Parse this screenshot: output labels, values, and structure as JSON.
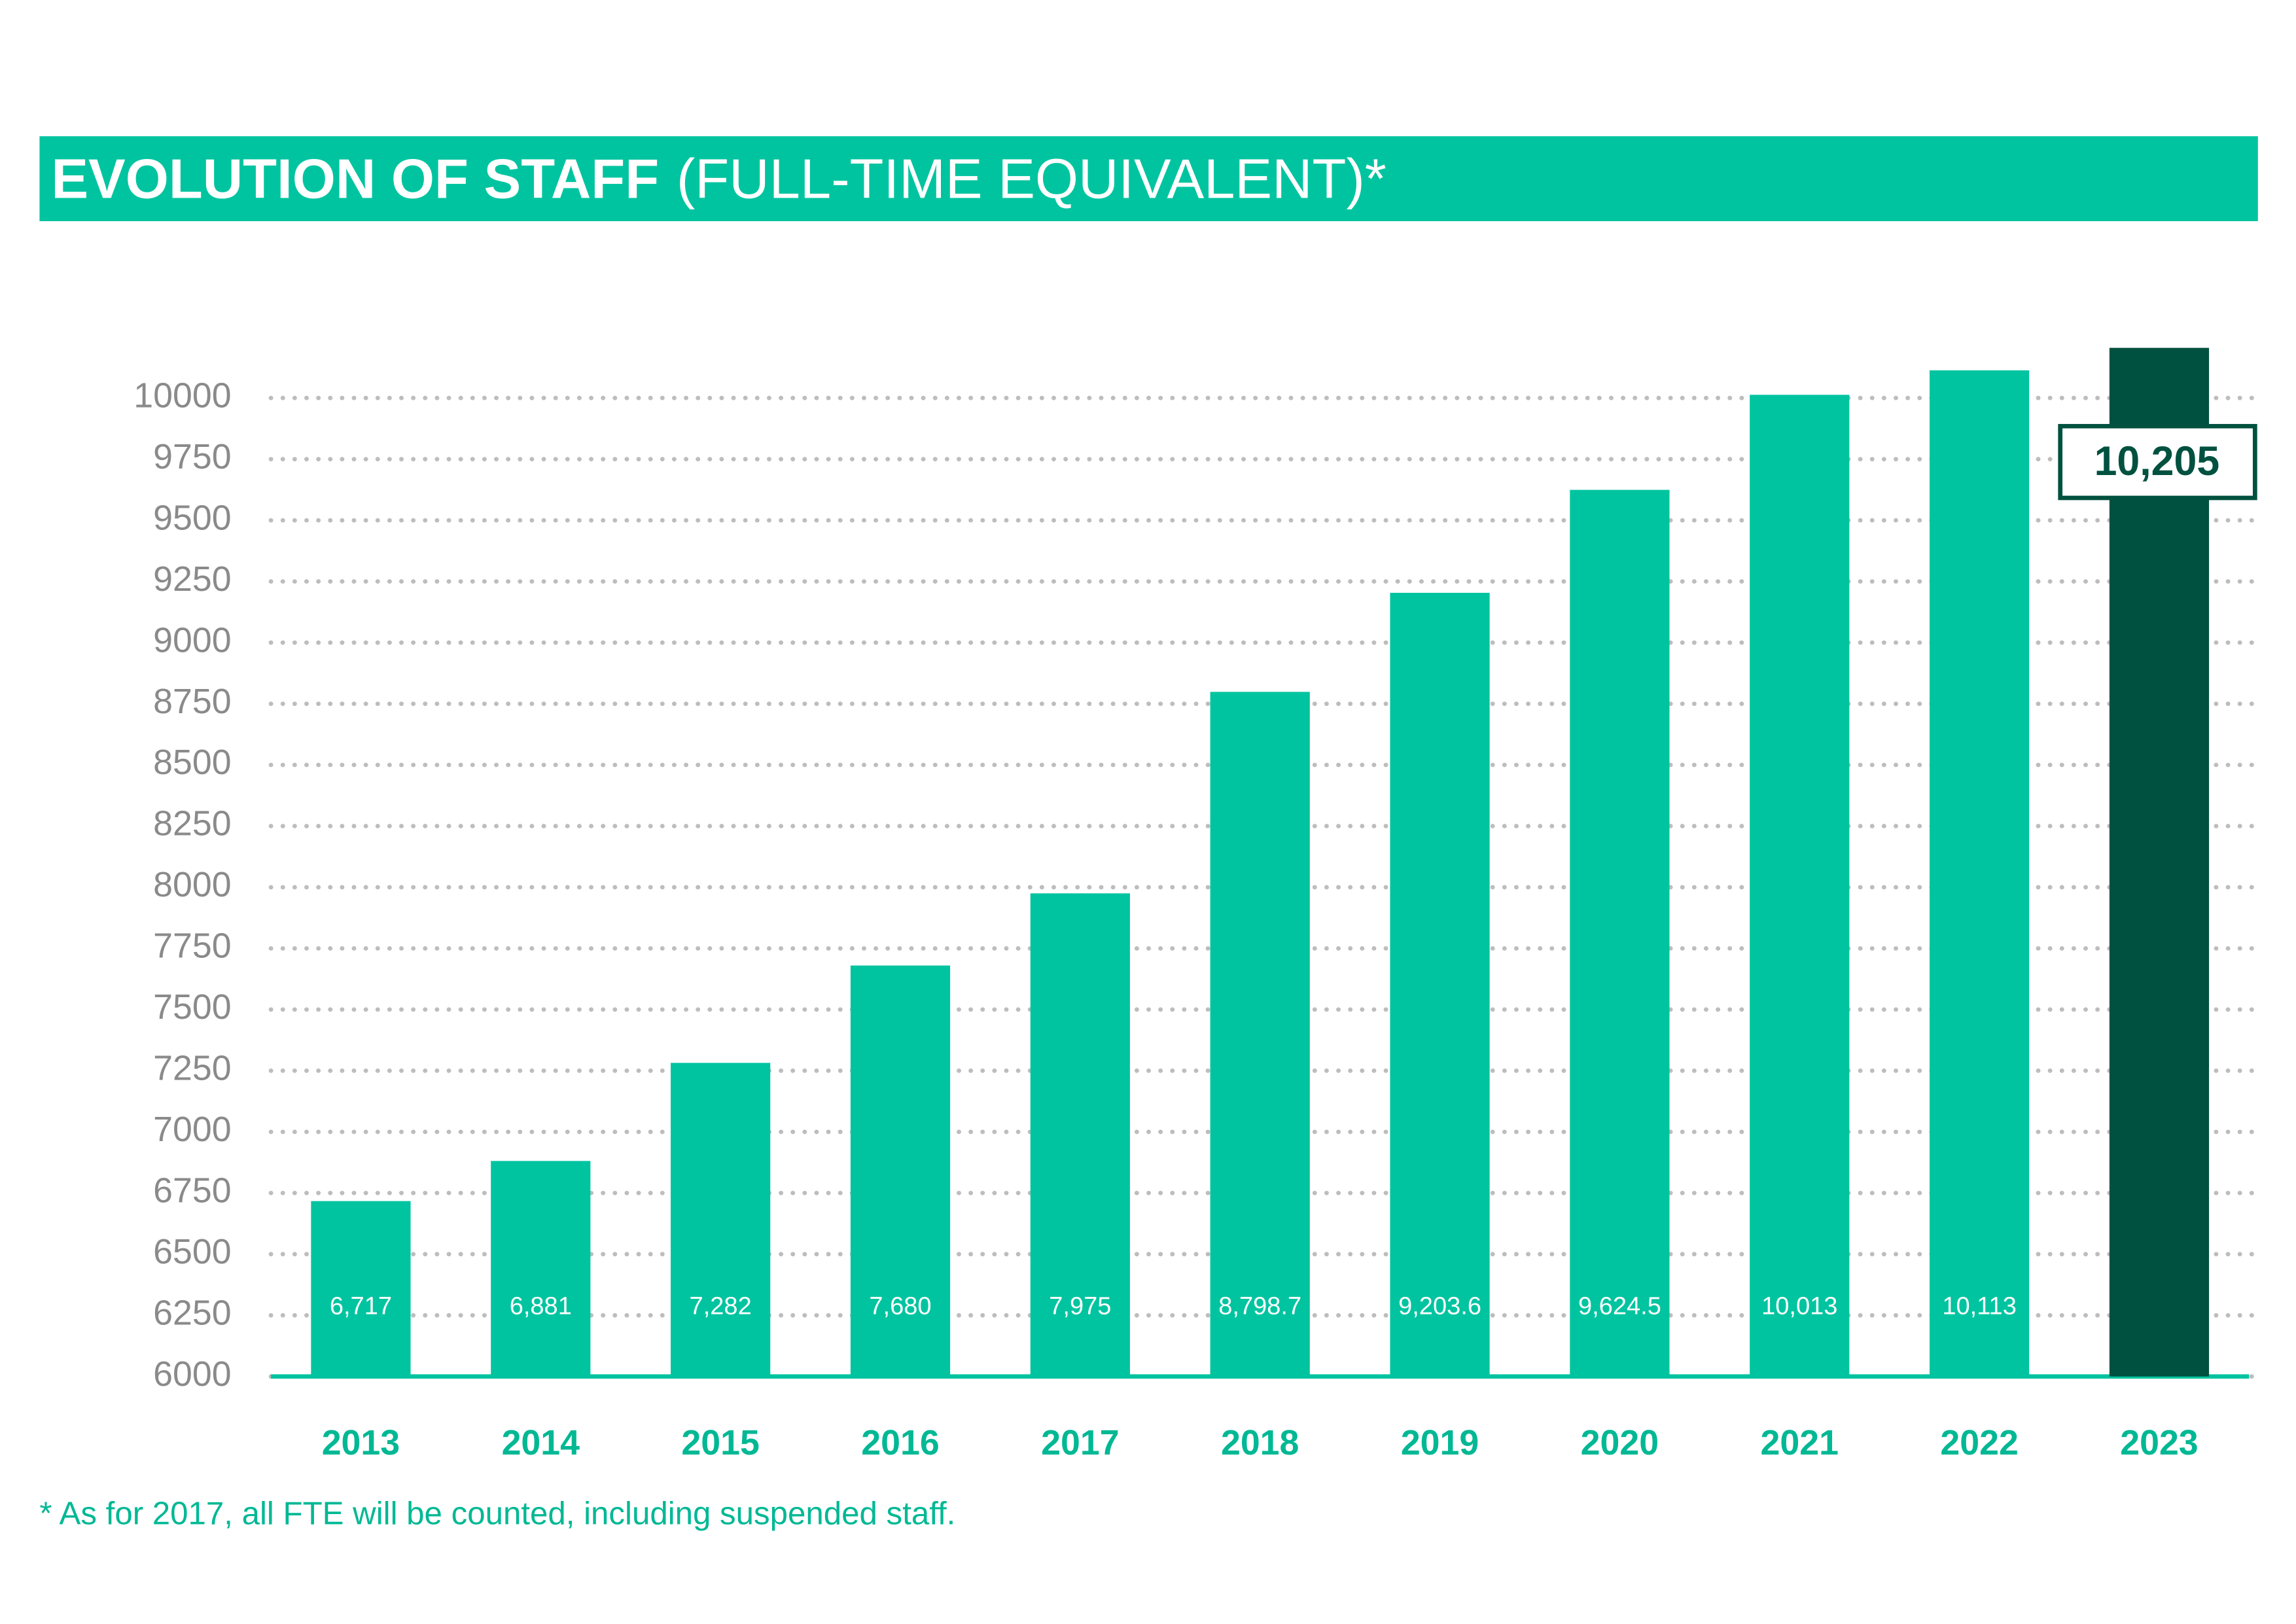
{
  "chart_data": {
    "type": "bar",
    "title": [
      "EVOLUTION OF STAFF",
      "(FULL-TIME EQUIVALENT)*"
    ],
    "footnote": "* As for 2017, all FTE will be counted, including suspended staff.",
    "categories": [
      "2013",
      "2014",
      "2015",
      "2016",
      "2017",
      "2018",
      "2019",
      "2020",
      "2021",
      "2022",
      "2023"
    ],
    "values": [
      6717,
      6881,
      7282,
      7680,
      7975,
      8798.7,
      9203.6,
      9624.5,
      10013,
      10113,
      10205
    ],
    "value_labels": [
      "6,717",
      "6,881",
      "7,282",
      "7,680",
      "7,975",
      "8,798.7",
      "9,203.6",
      "9,624.5",
      "10,013",
      "10,113",
      "10,205"
    ],
    "color": "#00c4a0",
    "colors": [
      "#00c4a0",
      "#00c4a0",
      "#00c4a0",
      "#00c4a0",
      "#00c4a0",
      "#00c4a0",
      "#00c4a0",
      "#00c4a0",
      "#00c4a0",
      "#00c4a0",
      "#00513f"
    ],
    "ylim": [
      6000,
      10250
    ],
    "yticks": [
      6000,
      6250,
      6500,
      6750,
      7000,
      7250,
      7500,
      7750,
      8000,
      8250,
      8500,
      8750,
      9000,
      9250,
      9500,
      9750,
      10000
    ],
    "grid": true
  }
}
